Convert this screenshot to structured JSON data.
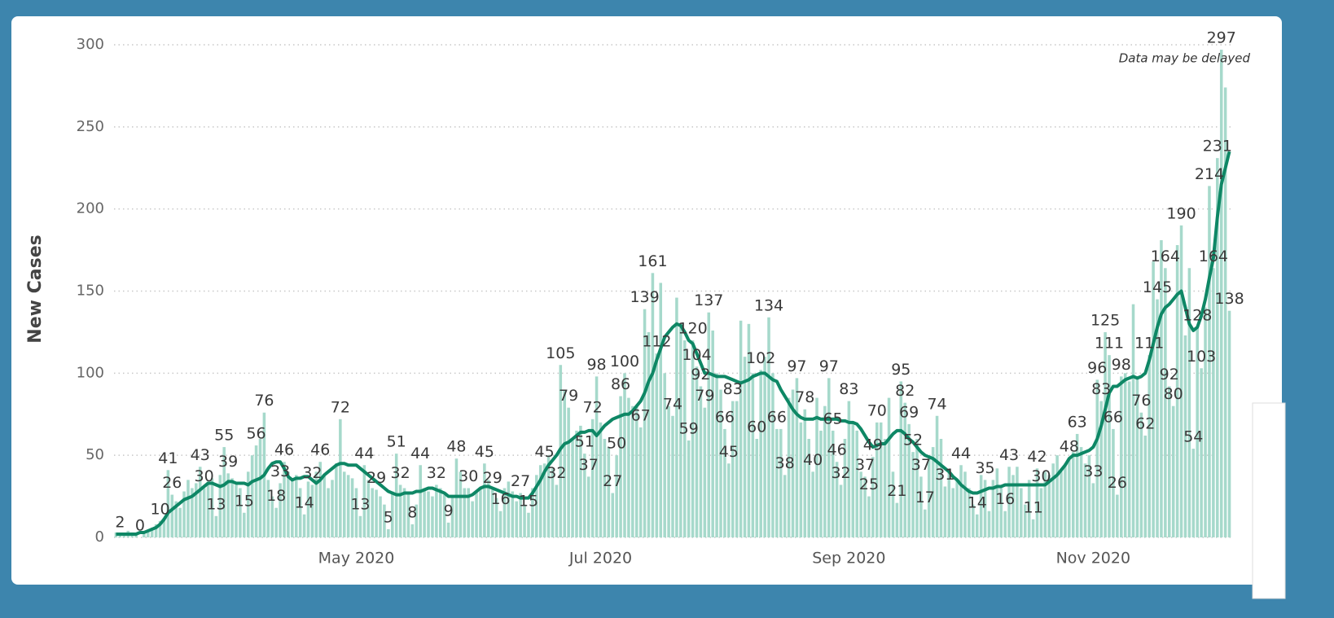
{
  "chart_data": {
    "type": "bar",
    "y_label": "New Cases",
    "annotation": "Data may be delayed",
    "ylim": [
      0,
      300
    ],
    "yticks": [
      0,
      50,
      100,
      150,
      200,
      250,
      300
    ],
    "grid": true,
    "categories": [
      null,
      null,
      null,
      null,
      null,
      null,
      null,
      null,
      null,
      null,
      null,
      null,
      null,
      null,
      null,
      null,
      null,
      null,
      null,
      null,
      null,
      null,
      null,
      null,
      null,
      null,
      null,
      null,
      null,
      null,
      null,
      null,
      null,
      null,
      null,
      null,
      null,
      null,
      null,
      null,
      null,
      null,
      null,
      null,
      null,
      null,
      null,
      null,
      null,
      null,
      null,
      null,
      null,
      null,
      null,
      null,
      null,
      null,
      null,
      null,
      "May 2020",
      null,
      null,
      null,
      null,
      null,
      null,
      null,
      null,
      null,
      null,
      null,
      null,
      null,
      null,
      null,
      null,
      null,
      null,
      null,
      null,
      null,
      null,
      null,
      null,
      null,
      null,
      null,
      null,
      null,
      null,
      null,
      null,
      null,
      null,
      null,
      null,
      null,
      null,
      null,
      null,
      null,
      null,
      null,
      null,
      null,
      null,
      null,
      null,
      null,
      null,
      null,
      null,
      null,
      null,
      null,
      null,
      null,
      null,
      null,
      null,
      "Jul 2020",
      null,
      null,
      null,
      null,
      null,
      null,
      null,
      null,
      null,
      null,
      null,
      null,
      null,
      null,
      null,
      null,
      null,
      null,
      null,
      null,
      null,
      null,
      null,
      null,
      null,
      null,
      null,
      null,
      null,
      null,
      null,
      null,
      null,
      null,
      null,
      null,
      null,
      null,
      null,
      null,
      null,
      null,
      null,
      null,
      null,
      null,
      null,
      null,
      null,
      null,
      null,
      null,
      null,
      null,
      null,
      null,
      null,
      null,
      null,
      null,
      null,
      "Sep 2020",
      null,
      null,
      null,
      null,
      null,
      null,
      null,
      null,
      null,
      null,
      null,
      null,
      null,
      null,
      null,
      null,
      null,
      null,
      null,
      null,
      null,
      null,
      null,
      null,
      null,
      null,
      null,
      null,
      null,
      null,
      null,
      null,
      null,
      null,
      null,
      null,
      null,
      null,
      null,
      null,
      null,
      null,
      null,
      null,
      null,
      null,
      null,
      null,
      null,
      null,
      null,
      null,
      null,
      null,
      null,
      null,
      null,
      null,
      null,
      null,
      "Nov 2020",
      null,
      null,
      null,
      null,
      null,
      null,
      null,
      null,
      null,
      null,
      null,
      null,
      null,
      null,
      null,
      null,
      null,
      null,
      null,
      null,
      null,
      null,
      null,
      null,
      null,
      null,
      null,
      null,
      null,
      null,
      null,
      null,
      null,
      null
    ],
    "series": [
      {
        "type": "bar",
        "color": "#a6d9cb",
        "values": [
          3,
          2,
          1,
          4,
          3,
          2,
          0,
          3,
          4,
          6,
          8,
          10,
          12,
          41,
          26,
          22,
          18,
          28,
          35,
          30,
          33,
          43,
          30,
          34,
          36,
          13,
          38,
          55,
          39,
          36,
          32,
          30,
          15,
          40,
          50,
          56,
          60,
          76,
          35,
          25,
          18,
          33,
          46,
          40,
          36,
          38,
          30,
          14,
          34,
          32,
          40,
          46,
          38,
          30,
          35,
          45,
          72,
          40,
          38,
          36,
          30,
          13,
          44,
          35,
          30,
          29,
          25,
          20,
          5,
          28,
          51,
          32,
          30,
          28,
          8,
          20,
          44,
          30,
          28,
          25,
          32,
          30,
          26,
          9,
          25,
          48,
          40,
          30,
          30,
          22,
          28,
          30,
          45,
          35,
          29,
          24,
          16,
          30,
          34,
          28,
          22,
          27,
          20,
          15,
          30,
          38,
          44,
          45,
          50,
          42,
          32,
          105,
          90,
          79,
          60,
          65,
          68,
          51,
          37,
          72,
          98,
          70,
          60,
          55,
          27,
          50,
          86,
          100,
          85,
          80,
          80,
          67,
          139,
          125,
          161,
          112,
          155,
          100,
          80,
          74,
          146,
          130,
          120,
          59,
          120,
          104,
          92,
          79,
          137,
          126,
          100,
          90,
          66,
          45,
          83,
          83,
          132,
          110,
          130,
          100,
          60,
          102,
          110,
          134,
          100,
          66,
          66,
          38,
          85,
          90,
          97,
          70,
          78,
          60,
          40,
          85,
          65,
          80,
          97,
          65,
          46,
          32,
          60,
          83,
          70,
          65,
          40,
          37,
          25,
          49,
          70,
          70,
          60,
          85,
          40,
          21,
          95,
          82,
          69,
          52,
          60,
          37,
          17,
          50,
          55,
          74,
          60,
          31,
          40,
          30,
          35,
          44,
          40,
          30,
          20,
          14,
          38,
          35,
          16,
          35,
          42,
          30,
          16,
          43,
          38,
          43,
          30,
          20,
          35,
          11,
          42,
          30,
          40,
          38,
          45,
          50,
          40,
          45,
          48,
          52,
          63,
          55,
          45,
          50,
          33,
          96,
          83,
          125,
          111,
          66,
          26,
          98,
          100,
          95,
          142,
          98,
          76,
          62,
          111,
          168,
          145,
          181,
          164,
          92,
          80,
          178,
          190,
          123,
          164,
          54,
          128,
          103,
          140,
          214,
          164,
          231,
          297,
          274,
          138
        ],
        "value_labels": [
          null,
          "2",
          null,
          null,
          null,
          null,
          "0",
          null,
          null,
          null,
          null,
          "10",
          null,
          "41",
          "26",
          null,
          null,
          null,
          null,
          null,
          null,
          "43",
          "30",
          null,
          null,
          "13",
          null,
          "55",
          "39",
          null,
          null,
          null,
          "15",
          null,
          null,
          "56",
          null,
          "76",
          null,
          null,
          "18",
          "33",
          "46",
          null,
          null,
          null,
          null,
          "14",
          null,
          "32",
          null,
          "46",
          null,
          null,
          null,
          null,
          "72",
          null,
          null,
          null,
          null,
          "13",
          "44",
          null,
          null,
          "29",
          null,
          null,
          "5",
          null,
          "51",
          "32",
          null,
          null,
          "8",
          null,
          "44",
          null,
          null,
          null,
          "32",
          null,
          null,
          "9",
          null,
          "48",
          null,
          null,
          "30",
          null,
          null,
          null,
          "45",
          null,
          "29",
          null,
          "16",
          null,
          null,
          null,
          null,
          "27",
          null,
          "15",
          null,
          null,
          null,
          "45",
          null,
          null,
          "32",
          "105",
          null,
          "79",
          null,
          null,
          null,
          "51",
          "37",
          "72",
          "98",
          null,
          null,
          null,
          "27",
          "50",
          "86",
          "100",
          null,
          null,
          null,
          "67",
          "139",
          null,
          "161",
          "112",
          null,
          null,
          null,
          "74",
          null,
          null,
          null,
          "59",
          "120",
          "104",
          "92",
          "79",
          "137",
          null,
          null,
          null,
          "66",
          "45",
          "83",
          null,
          null,
          null,
          null,
          null,
          "60",
          "102",
          null,
          "134",
          null,
          "66",
          null,
          "38",
          null,
          null,
          "97",
          null,
          "78",
          null,
          "40",
          null,
          null,
          null,
          "97",
          "65",
          "46",
          "32",
          null,
          "83",
          null,
          null,
          null,
          "37",
          "25",
          "49",
          "70",
          null,
          null,
          null,
          null,
          "21",
          "95",
          "82",
          "69",
          "52",
          null,
          "37",
          "17",
          null,
          null,
          "74",
          null,
          "31",
          null,
          null,
          null,
          "44",
          null,
          null,
          null,
          "14",
          null,
          "35",
          null,
          null,
          null,
          null,
          "16",
          "43",
          null,
          null,
          null,
          null,
          null,
          "11",
          "42",
          "30",
          null,
          null,
          null,
          null,
          null,
          null,
          "48",
          null,
          "63",
          null,
          null,
          null,
          "33",
          "96",
          "83",
          "125",
          "111",
          "66",
          "26",
          "98",
          null,
          null,
          null,
          null,
          "76",
          "62",
          "111",
          null,
          "145",
          null,
          "164",
          "92",
          "80",
          null,
          "190",
          null,
          null,
          "54",
          "128",
          "103",
          null,
          "214",
          "164",
          "231",
          "297",
          null,
          "138"
        ]
      },
      {
        "type": "line",
        "color": "#0e8765",
        "values": [
          2,
          2,
          2,
          2,
          2,
          2,
          3,
          3,
          4,
          5,
          6,
          8,
          11,
          15,
          17,
          19,
          21,
          23,
          24,
          25,
          27,
          29,
          31,
          33,
          33,
          32,
          31,
          32,
          34,
          34,
          33,
          33,
          33,
          32,
          34,
          35,
          36,
          38,
          42,
          45,
          46,
          46,
          42,
          37,
          35,
          36,
          36,
          37,
          37,
          35,
          33,
          35,
          38,
          40,
          42,
          44,
          45,
          45,
          44,
          44,
          44,
          42,
          40,
          38,
          36,
          34,
          32,
          30,
          28,
          27,
          26,
          26,
          27,
          27,
          27,
          28,
          28,
          29,
          30,
          30,
          29,
          28,
          27,
          25,
          25,
          25,
          25,
          25,
          25,
          26,
          28,
          30,
          31,
          31,
          30,
          29,
          28,
          27,
          26,
          25,
          25,
          24,
          24,
          24,
          27,
          31,
          35,
          40,
          44,
          47,
          50,
          54,
          57,
          58,
          60,
          62,
          64,
          64,
          65,
          65,
          62,
          65,
          68,
          70,
          72,
          73,
          74,
          75,
          75,
          77,
          80,
          83,
          88,
          95,
          100,
          108,
          115,
          122,
          125,
          128,
          130,
          129,
          125,
          120,
          118,
          112,
          106,
          100,
          100,
          99,
          98,
          98,
          98,
          97,
          96,
          95,
          94,
          95,
          96,
          98,
          99,
          100,
          100,
          98,
          96,
          95,
          90,
          86,
          82,
          78,
          75,
          73,
          72,
          72,
          72,
          73,
          72,
          72,
          72,
          72,
          72,
          71,
          71,
          70,
          70,
          69,
          66,
          62,
          58,
          55,
          56,
          57,
          57,
          60,
          63,
          65,
          65,
          63,
          60,
          58,
          55,
          52,
          50,
          49,
          48,
          46,
          44,
          42,
          40,
          37,
          35,
          32,
          30,
          28,
          27,
          27,
          28,
          29,
          30,
          30,
          31,
          31,
          32,
          32,
          32,
          32,
          32,
          32,
          32,
          32,
          32,
          32,
          32,
          34,
          36,
          38,
          41,
          44,
          48,
          50,
          50,
          51,
          52,
          53,
          55,
          60,
          68,
          78,
          88,
          92,
          92,
          94,
          96,
          97,
          98,
          97,
          98,
          100,
          108,
          118,
          128,
          136,
          140,
          142,
          145,
          148,
          150,
          140,
          130,
          126,
          128,
          135,
          145,
          158,
          170,
          195,
          215,
          225,
          235
        ]
      }
    ]
  }
}
